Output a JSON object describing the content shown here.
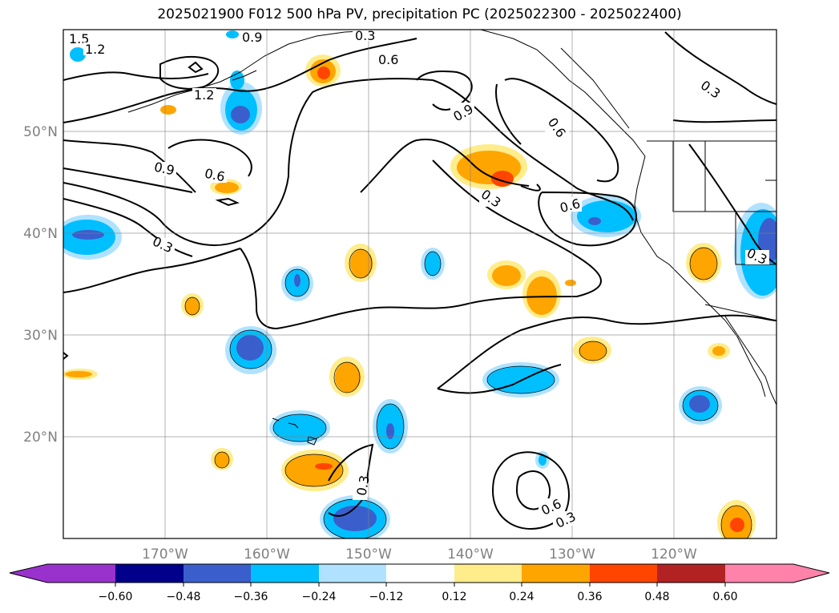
{
  "title": "2025021900 F012 500 hPa PV, precipitation PC (2025022300 - 2025022400)",
  "map": {
    "lon_range": [
      -180,
      -110
    ],
    "lat_range": [
      10,
      60
    ],
    "lat_ticks": [
      {
        "value": 50,
        "label": "50°N"
      },
      {
        "value": 40,
        "label": "40°N"
      },
      {
        "value": 30,
        "label": "30°N"
      },
      {
        "value": 20,
        "label": "20°N"
      }
    ],
    "lon_ticks": [
      {
        "value": -170,
        "label": "170°W"
      },
      {
        "value": -160,
        "label": "160°W"
      },
      {
        "value": -150,
        "label": "150°W"
      },
      {
        "value": -140,
        "label": "140°W"
      },
      {
        "value": -130,
        "label": "130°W"
      },
      {
        "value": -120,
        "label": "120°W"
      }
    ],
    "pv_contour_labels": [
      "1.5",
      "1.2",
      "0.9",
      "0.6",
      "0.3",
      "1.2",
      "0.6",
      "0.9",
      "0.6",
      "0.9",
      "0.3",
      "0.3",
      "0.6",
      "0.3",
      "0.3",
      "0.6",
      "0.3",
      "0.3"
    ]
  },
  "colorbar": {
    "levels": [
      -0.6,
      -0.48,
      -0.36,
      -0.24,
      -0.12,
      0.12,
      0.24,
      0.36,
      0.48,
      0.6
    ],
    "tick_labels": [
      "−0.60",
      "−0.48",
      "−0.36",
      "−0.24",
      "−0.12",
      "0.12",
      "0.24",
      "0.36",
      "0.48",
      "0.60"
    ],
    "colors": [
      "#9932cc",
      "#00008b",
      "#3a5fcd",
      "#00bfff",
      "#b0e2ff",
      "#ffffff",
      "#ffec8b",
      "#ffa500",
      "#ff4500",
      "#b22222",
      "#ff82ab"
    ]
  }
}
